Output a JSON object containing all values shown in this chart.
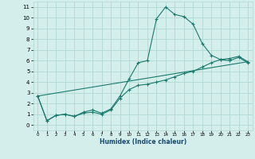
{
  "title": "",
  "xlabel": "Humidex (Indice chaleur)",
  "ylabel": "",
  "background_color": "#d4eeeb",
  "grid_color": "#b0d8d4",
  "line_color": "#1a7a6e",
  "xlim": [
    -0.5,
    23.5
  ],
  "ylim": [
    -0.5,
    11.5
  ],
  "xticks": [
    0,
    1,
    2,
    3,
    4,
    5,
    6,
    7,
    8,
    9,
    10,
    11,
    12,
    13,
    14,
    15,
    16,
    17,
    18,
    19,
    20,
    21,
    22,
    23
  ],
  "yticks": [
    0,
    1,
    2,
    3,
    4,
    5,
    6,
    7,
    8,
    9,
    10,
    11
  ],
  "line1_x": [
    0,
    1,
    2,
    3,
    4,
    5,
    6,
    7,
    8,
    9,
    10,
    11,
    12,
    13,
    14,
    15,
    16,
    17,
    18,
    19,
    20,
    21,
    22,
    23
  ],
  "line1_y": [
    2.7,
    0.4,
    0.9,
    1.0,
    0.8,
    1.2,
    1.4,
    1.1,
    1.5,
    2.7,
    4.3,
    5.8,
    6.0,
    9.9,
    11.0,
    10.3,
    10.1,
    9.4,
    7.6,
    6.5,
    6.1,
    6.2,
    6.4,
    5.9
  ],
  "line2_x": [
    0,
    1,
    2,
    3,
    4,
    5,
    6,
    7,
    8,
    9,
    10,
    11,
    12,
    13,
    14,
    15,
    16,
    17,
    18,
    19,
    20,
    21,
    22,
    23
  ],
  "line2_y": [
    2.7,
    0.4,
    0.9,
    1.0,
    0.8,
    1.1,
    1.2,
    1.0,
    1.4,
    2.5,
    3.3,
    3.7,
    3.8,
    4.0,
    4.2,
    4.5,
    4.8,
    5.0,
    5.4,
    5.8,
    6.1,
    6.0,
    6.3,
    5.8
  ],
  "line3_x": [
    0,
    23
  ],
  "line3_y": [
    2.7,
    5.9
  ]
}
